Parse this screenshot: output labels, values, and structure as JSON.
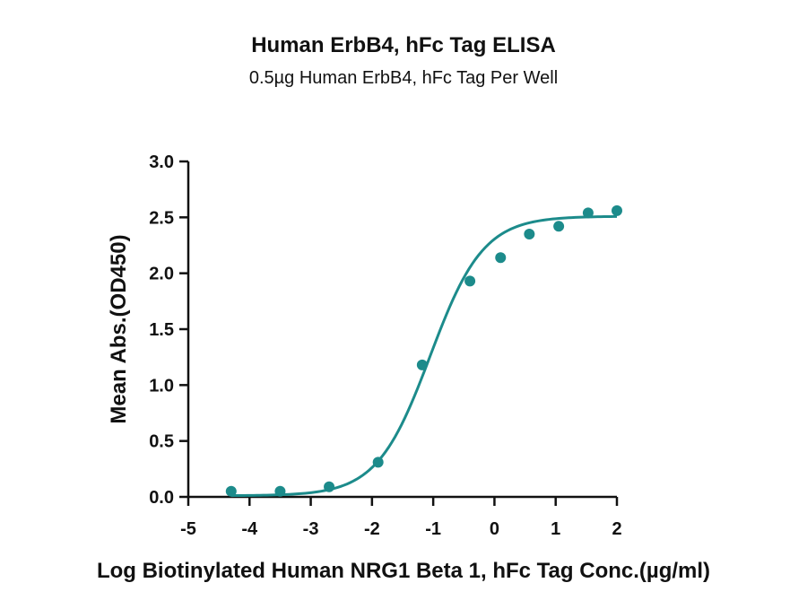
{
  "chart_data": {
    "type": "scatter",
    "title": "Human ErbB4, hFc Tag ELISA",
    "subtitle": "0.5µg Human ErbB4, hFc Tag Per Well",
    "xlabel": "Log Biotinylated Human NRG1 Beta 1, hFc Tag Conc.(µg/ml)",
    "ylabel": "Mean Abs.(OD450)",
    "xlim": [
      -5,
      2
    ],
    "ylim": [
      0,
      3.0
    ],
    "x_ticks": [
      -5,
      -4,
      -3,
      -2,
      -1,
      0,
      1,
      2
    ],
    "y_ticks": [
      0.0,
      0.5,
      1.0,
      1.5,
      2.0,
      2.5,
      3.0
    ],
    "x_tick_labels": [
      "-5",
      "-4",
      "-3",
      "-2",
      "-1",
      "0",
      "1",
      "2"
    ],
    "y_tick_labels": [
      "0.0",
      "0.5",
      "1.0",
      "1.5",
      "2.0",
      "2.5",
      "3.0"
    ],
    "series": [
      {
        "points_x": [
          -4.3,
          -3.5,
          -2.7,
          -1.9,
          -1.18,
          -0.4,
          0.1,
          0.57,
          1.05,
          1.53,
          2.0
        ],
        "points_y": [
          0.05,
          0.05,
          0.09,
          0.31,
          1.18,
          1.93,
          2.14,
          2.35,
          2.42,
          2.54,
          2.56
        ],
        "fit": {
          "model": "4PL",
          "bottom": 0.01,
          "top": 2.51,
          "logEC50": -1.05,
          "hill": 1.0
        }
      }
    ],
    "color": "#1c8b8b",
    "grid": false,
    "legend": "none"
  }
}
